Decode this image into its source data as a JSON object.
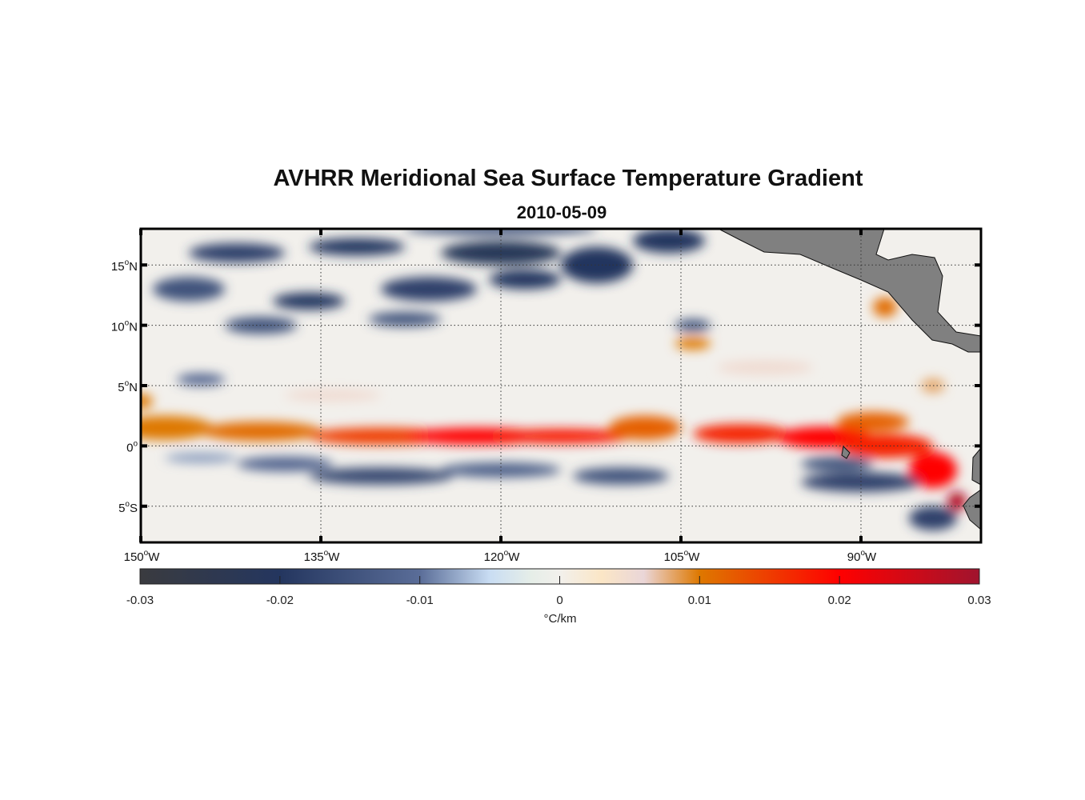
{
  "chart_data": {
    "type": "heatmap",
    "title": "AVHRR Meridional Sea Surface Temperature Gradient",
    "subtitle": "2010-05-09",
    "lon_range": [
      -150,
      -80
    ],
    "lat_range": [
      -8,
      18
    ],
    "xticks": [
      {
        "value": -150,
        "deg": "150",
        "hemi": "W"
      },
      {
        "value": -135,
        "deg": "135",
        "hemi": "W"
      },
      {
        "value": -120,
        "deg": "120",
        "hemi": "W"
      },
      {
        "value": -105,
        "deg": "105",
        "hemi": "W"
      },
      {
        "value": -90,
        "deg": "90",
        "hemi": "W"
      }
    ],
    "yticks": [
      {
        "value": 15,
        "deg": "15",
        "hemi": "N"
      },
      {
        "value": 10,
        "deg": "10",
        "hemi": "N"
      },
      {
        "value": 5,
        "deg": "5",
        "hemi": "N"
      },
      {
        "value": 0,
        "deg": "0",
        "hemi": ""
      },
      {
        "value": -5,
        "deg": "5",
        "hemi": "S"
      }
    ],
    "grid": true,
    "colorbar": {
      "range": [
        -0.03,
        0.03
      ],
      "ticks": [
        "-0.03",
        "-0.02",
        "-0.01",
        "0",
        "0.01",
        "0.02",
        "0.03"
      ],
      "label": "°C/km",
      "stops": [
        [
          -0.03,
          "#3a3b3f"
        ],
        [
          -0.02,
          "#24365f"
        ],
        [
          -0.01,
          "#5a6d98"
        ],
        [
          -0.005,
          "#c9ddf3"
        ],
        [
          -0.002,
          "#e6eee8"
        ],
        [
          0,
          "#f2f0ec"
        ],
        [
          0.003,
          "#fbe6c6"
        ],
        [
          0.006,
          "#ead6d8"
        ],
        [
          0.01,
          "#de7800"
        ],
        [
          0.02,
          "#ff0000"
        ],
        [
          0.03,
          "#a0142e"
        ]
      ]
    },
    "features": [
      [
        -148,
        1.5,
        4,
        1.0,
        0.01
      ],
      [
        -140,
        1.2,
        5,
        0.8,
        0.011
      ],
      [
        -130,
        0.8,
        6,
        0.7,
        0.015
      ],
      [
        -122,
        0.8,
        6,
        0.7,
        0.02
      ],
      [
        -115,
        0.8,
        6,
        0.6,
        0.018
      ],
      [
        -108,
        1.5,
        3,
        1.0,
        0.012
      ],
      [
        -100,
        1.0,
        4,
        0.8,
        0.017
      ],
      [
        -93,
        0.7,
        4,
        0.9,
        0.02
      ],
      [
        -88,
        0.0,
        4,
        1.0,
        0.017
      ],
      [
        -84,
        -2.0,
        2,
        1.5,
        0.02
      ],
      [
        -82,
        -4.6,
        0.8,
        0.8,
        0.028
      ],
      [
        -89,
        2.0,
        3,
        0.8,
        0.012
      ],
      [
        -150,
        3.7,
        1,
        0.6,
        0.01
      ],
      [
        -104,
        8.5,
        1.5,
        0.5,
        0.01
      ],
      [
        -88,
        11.5,
        1,
        0.8,
        0.011
      ],
      [
        -84,
        5.0,
        1,
        0.6,
        0.008
      ],
      [
        -98,
        6.5,
        4,
        0.6,
        0.005
      ],
      [
        -134,
        4.2,
        4,
        0.5,
        0.005
      ],
      [
        -142,
        16,
        4,
        0.8,
        -0.018
      ],
      [
        -132,
        16.5,
        4,
        0.7,
        -0.02
      ],
      [
        -120,
        16,
        5,
        1.0,
        -0.022
      ],
      [
        -112,
        15,
        3,
        1.5,
        -0.02
      ],
      [
        -146,
        13,
        3,
        1.0,
        -0.015
      ],
      [
        -136,
        12,
        3,
        0.7,
        -0.02
      ],
      [
        -126,
        13,
        4,
        1.0,
        -0.018
      ],
      [
        -118,
        13.8,
        3,
        0.8,
        -0.02
      ],
      [
        -140,
        10,
        3,
        0.7,
        -0.015
      ],
      [
        -128,
        10.5,
        3,
        0.6,
        -0.015
      ],
      [
        -145,
        5.5,
        2,
        0.5,
        -0.012
      ],
      [
        -106,
        17,
        3,
        1.0,
        -0.02
      ],
      [
        -104,
        10,
        1.5,
        0.5,
        -0.015
      ],
      [
        -120,
        18,
        8,
        0.5,
        -0.015
      ],
      [
        -130,
        -2.5,
        6,
        0.7,
        -0.017
      ],
      [
        -120,
        -2.0,
        5,
        0.6,
        -0.013
      ],
      [
        -110,
        -2.5,
        4,
        0.7,
        -0.015
      ],
      [
        -138,
        -1.5,
        4,
        0.6,
        -0.012
      ],
      [
        -90,
        -3.0,
        5,
        0.8,
        -0.018
      ],
      [
        -92,
        -1.5,
        3,
        0.6,
        -0.015
      ],
      [
        -84,
        -6.0,
        2,
        1.0,
        -0.018
      ],
      [
        -145,
        -1.0,
        3,
        0.4,
        -0.008
      ]
    ]
  }
}
